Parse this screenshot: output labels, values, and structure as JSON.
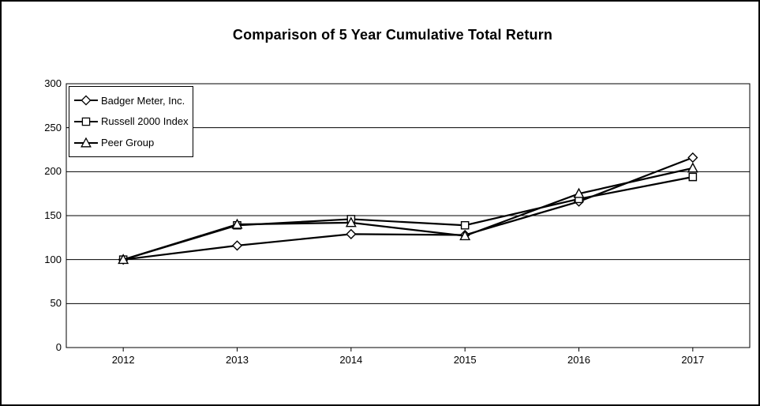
{
  "chart_data": {
    "type": "line",
    "title": "Comparison of 5 Year Cumulative Total Return",
    "categories": [
      "2012",
      "2013",
      "2014",
      "2015",
      "2016",
      "2017"
    ],
    "series": [
      {
        "name": "Badger Meter, Inc.",
        "marker": "diamond",
        "values": [
          100,
          116,
          129,
          128,
          166,
          216
        ]
      },
      {
        "name": "Russell 2000 Index",
        "marker": "square",
        "values": [
          100,
          139,
          146,
          139,
          169,
          194
        ]
      },
      {
        "name": "Peer Group",
        "marker": "triangle",
        "values": [
          100,
          140,
          142,
          127,
          175,
          204
        ]
      }
    ],
    "xlabel": "",
    "ylabel": "",
    "ylim": [
      0,
      300
    ],
    "yticks": [
      0,
      50,
      100,
      150,
      200,
      250,
      300
    ],
    "grid": true,
    "legend_position": "top-left",
    "line_color": "#000000",
    "marker_fill": "#ffffff",
    "grid_color": "#000000",
    "background_color": "#ffffff"
  }
}
